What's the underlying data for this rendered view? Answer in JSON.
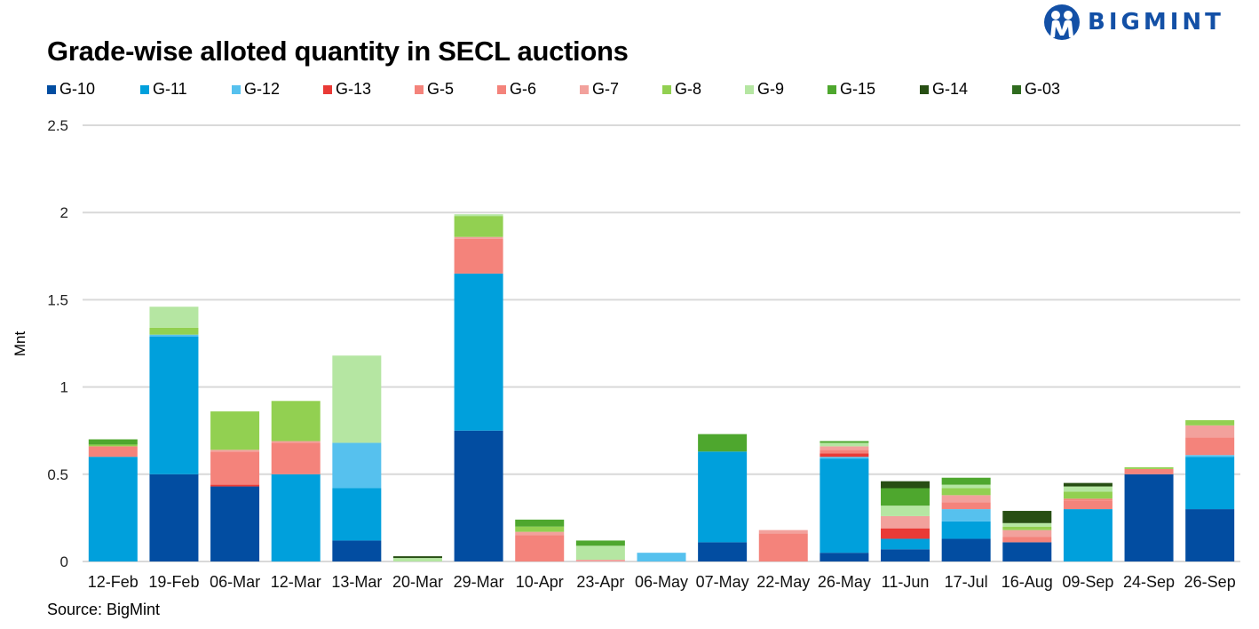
{
  "header": {
    "title": "Grade-wise alloted quantity in SECL auctions",
    "logo_text": "BIGMINT",
    "logo_icon": "bigmint-people-icon"
  },
  "footer": {
    "source": "Source: BigMint"
  },
  "chart_data": {
    "type": "bar",
    "stacked": true,
    "title": "Grade-wise alloted quantity in SECL auctions",
    "xlabel": "",
    "ylabel": "Mnt",
    "ylim": [
      0,
      2.5
    ],
    "yticks": [
      0,
      0.5,
      1,
      1.5,
      2,
      2.5
    ],
    "ytick_labels": [
      "0",
      "0.5",
      "1",
      "1.5",
      "2",
      "2.5"
    ],
    "grid": true,
    "legend_position": "top-left",
    "categories": [
      "12-Feb",
      "19-Feb",
      "06-Mar",
      "12-Mar",
      "13-Mar",
      "20-Mar",
      "29-Mar",
      "10-Apr",
      "23-Apr",
      "06-May",
      "07-May",
      "22-May",
      "26-May",
      "11-Jun",
      "17-Jul",
      "16-Aug",
      "09-Sep",
      "24-Sep",
      "26-Sep"
    ],
    "series": [
      {
        "name": "G-10",
        "color": "#024da1",
        "values": [
          0,
          0.5,
          0.43,
          0,
          0.12,
          0,
          0.75,
          0,
          0,
          0,
          0.11,
          0,
          0.05,
          0.07,
          0.13,
          0.11,
          0,
          0.5,
          0.3
        ]
      },
      {
        "name": "G-11",
        "color": "#00a0dc",
        "values": [
          0.6,
          0.79,
          0,
          0.5,
          0.3,
          0,
          0.9,
          0,
          0,
          0,
          0.52,
          0,
          0.54,
          0.06,
          0.1,
          0,
          0.3,
          0,
          0.3
        ]
      },
      {
        "name": "G-12",
        "color": "#56c1ee",
        "values": [
          0,
          0.01,
          0,
          0,
          0.26,
          0,
          0,
          0,
          0,
          0.05,
          0,
          0,
          0.01,
          0,
          0.07,
          0,
          0,
          0,
          0.01
        ]
      },
      {
        "name": "G-13",
        "color": "#e93a36",
        "values": [
          0,
          0,
          0.01,
          0,
          0,
          0,
          0,
          0,
          0,
          0,
          0,
          0,
          0.02,
          0.06,
          0,
          0,
          0,
          0,
          0
        ]
      },
      {
        "name": "G-5",
        "color": "#f4837b",
        "values": [
          0,
          0,
          0.19,
          0.18,
          0,
          0,
          0.2,
          0.15,
          0,
          0,
          0,
          0.16,
          0.02,
          0,
          0.04,
          0.03,
          0.05,
          0.03,
          0.1
        ]
      },
      {
        "name": "G-6",
        "color": "#f4837b",
        "values": [
          0.06,
          0,
          0,
          0,
          0,
          0,
          0,
          0,
          0,
          0,
          0,
          0,
          0,
          0,
          0,
          0,
          0.01,
          0,
          0
        ]
      },
      {
        "name": "G-7",
        "color": "#f2a19c",
        "values": [
          0,
          0,
          0.01,
          0.01,
          0,
          0,
          0.01,
          0.02,
          0.01,
          0,
          0,
          0.02,
          0.02,
          0.07,
          0.04,
          0.04,
          0,
          0,
          0.07
        ]
      },
      {
        "name": "G-8",
        "color": "#92d051",
        "values": [
          0.01,
          0.04,
          0.22,
          0.23,
          0,
          0,
          0.12,
          0.03,
          0,
          0,
          0,
          0,
          0,
          0,
          0.04,
          0.02,
          0.04,
          0.01,
          0.03
        ]
      },
      {
        "name": "G-9",
        "color": "#b5e6a2",
        "values": [
          0,
          0.12,
          0,
          0,
          0.5,
          0.02,
          0.01,
          0,
          0.08,
          0,
          0,
          0,
          0.02,
          0.06,
          0.02,
          0.02,
          0.03,
          0,
          0
        ]
      },
      {
        "name": "G-15",
        "color": "#4ea72e",
        "values": [
          0.03,
          0,
          0,
          0,
          0,
          0,
          0,
          0.04,
          0.03,
          0,
          0.1,
          0,
          0.01,
          0.1,
          0.04,
          0,
          0,
          0,
          0
        ]
      },
      {
        "name": "G-14",
        "color": "#274e13",
        "values": [
          0,
          0,
          0,
          0,
          0,
          0.01,
          0,
          0,
          0,
          0,
          0,
          0,
          0,
          0.04,
          0,
          0.07,
          0.02,
          0,
          0
        ]
      },
      {
        "name": "G-03",
        "color": "#2f6b1f",
        "values": [
          0,
          0,
          0,
          0,
          0,
          0,
          0,
          0,
          0,
          0,
          0,
          0,
          0,
          0,
          0,
          0,
          0,
          0,
          0
        ]
      }
    ]
  }
}
